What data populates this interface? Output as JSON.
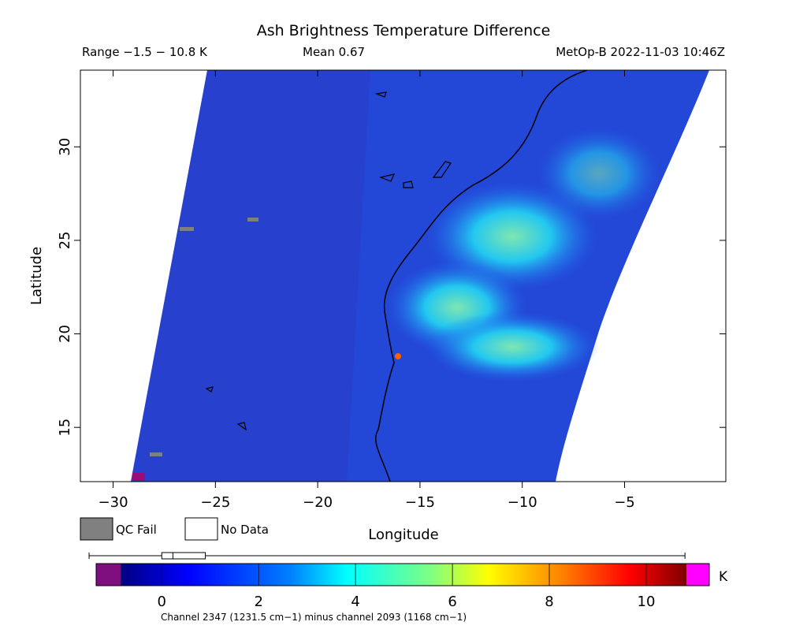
{
  "header": {
    "title": "Ash Brightness Temperature Difference",
    "range": "Range −1.5 − 10.8 K",
    "mean": "Mean 0.67",
    "satellite": "MetOp-B 2022-11-03 10:46Z"
  },
  "map": {
    "xlabel": "Longitude",
    "ylabel": "Latitude",
    "xlim": [
      -31.6,
      -0.05
    ],
    "ylim": [
      12.1,
      34.1
    ],
    "xticks": [
      {
        "value": -30,
        "label": "−30"
      },
      {
        "value": -25,
        "label": "−25"
      },
      {
        "value": -20,
        "label": "−20"
      },
      {
        "value": -15,
        "label": "−15"
      },
      {
        "value": -10,
        "label": "−10"
      },
      {
        "value": -5,
        "label": "−5"
      }
    ],
    "yticks": [
      15,
      20,
      25,
      30
    ]
  },
  "legend": {
    "qc_fail": "QC Fail",
    "no_data": "No Data"
  },
  "colorbar": {
    "lim": [
      -0.85,
      10.83
    ],
    "ticks": [
      0,
      2,
      4,
      6,
      8,
      10
    ],
    "unit": "K",
    "caption": "Channel 2347 (1231.5 cm−1) minus channel 2093 (1168 cm−1)",
    "boxplot": {
      "min": -1.5,
      "q1": 0,
      "median": 0.23,
      "q3": 0.9,
      "max": 10.8
    }
  }
}
